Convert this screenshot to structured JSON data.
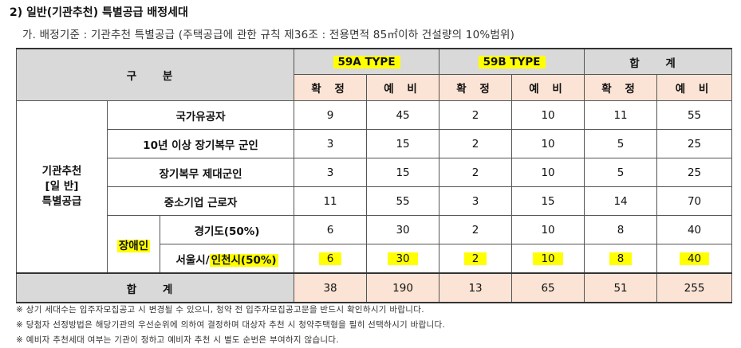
{
  "title": "2) 일반(기관추천) 특별공급 배정세대",
  "subtitle": "가. 배정기준 : 기관추천 특별공급 (주택공급에 관한 규칙 제36조 : 전용면적 85㎡이하 건설량의 10%범위)",
  "table": {
    "header": {
      "category": "구 분",
      "types": [
        "59A TYPE",
        "59B TYPE",
        "합 계"
      ],
      "sub": [
        "확 정",
        "예 비"
      ]
    },
    "group_label": "기관추천\n[일 반]\n특별공급",
    "disabled_label": "장애인",
    "seoul_prefix": "서울시/",
    "seoul_highlight": "인천시(50%)",
    "rows": [
      {
        "label": "국가유공자",
        "values": [
          "9",
          "45",
          "2",
          "10",
          "11",
          "55"
        ]
      },
      {
        "label": "10년 이상 장기복무 군인",
        "values": [
          "3",
          "15",
          "2",
          "10",
          "5",
          "25"
        ]
      },
      {
        "label": "장기복무 제대군인",
        "values": [
          "3",
          "15",
          "2",
          "10",
          "5",
          "25"
        ]
      },
      {
        "label": "중소기업 근로자",
        "values": [
          "11",
          "55",
          "3",
          "15",
          "14",
          "70"
        ]
      },
      {
        "label": "경기도(50%)",
        "values": [
          "6",
          "30",
          "2",
          "10",
          "8",
          "40"
        ]
      },
      {
        "label": "서울시/인천시(50%)",
        "values": [
          "6",
          "30",
          "2",
          "10",
          "8",
          "40"
        ]
      }
    ],
    "total": {
      "label": "합 계",
      "values": [
        "38",
        "190",
        "13",
        "65",
        "51",
        "255"
      ]
    }
  },
  "notes": [
    "※ 상기 세대수는 입주자모집공고 시 변경될 수 있으니, 청약 전 입주자모집공고문을 반드시 확인하시기 바랍니다.",
    "※ 당첨자 선정방법은 해당기관의 우선순위에 의하여 결정하며 대상자 추천 시 청약주택형을 필히 선택하시기 바랍니다.",
    "※ 예비자 추천세대 여부는 기관이 정하고 예비자 추천 시 별도 순번은 부여하지 않습니다."
  ],
  "colors": {
    "header_gray": "#d9d9d9",
    "header_peach": "#fbe4d5",
    "highlight": "#ffff00"
  }
}
